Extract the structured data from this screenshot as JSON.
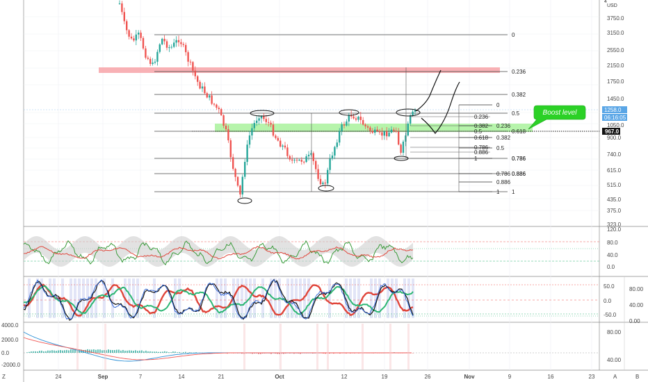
{
  "axis": {
    "currency": "USD",
    "multiplier": "4",
    "last_price": "1258.0",
    "countdown": "06:16:05",
    "crosshair_price": "967.0",
    "price_ticks": [
      "3750.0",
      "3150.0",
      "2550.0",
      "2150.0",
      "1750.0",
      "1450.0",
      "1258.0",
      "1050.0",
      "900.0",
      "740.0",
      "615.0",
      "515.0",
      "435.0",
      "375.0",
      "323.0"
    ],
    "pane1_ticks": [
      "120.0",
      "80.0",
      "40.0",
      "0.0"
    ],
    "pane2_ticks": [
      "50.0",
      "0.0",
      "-50.0"
    ],
    "pane2_right_ticks": [
      "80.00",
      "40.00",
      "0.00"
    ],
    "pane3_ticks": [
      "4000.0",
      "2000.0",
      "0.0",
      "-2000.0"
    ],
    "pane3_right_ticks": [
      "80.00",
      "40.00"
    ],
    "time_ticks": [
      "24",
      "Sep",
      "7",
      "14",
      "21",
      "Oct",
      "12",
      "19",
      "26",
      "Nov",
      "9",
      "16",
      "23"
    ]
  },
  "fib_levels": {
    "large": [
      "0",
      "0.236",
      "0.382",
      "0.5",
      "0.618",
      "0.786",
      "0.886",
      "1"
    ],
    "mid": [
      "0",
      "0.236",
      "0.382",
      "0.5",
      "0.618",
      "0.786",
      "0.886",
      "1"
    ],
    "small": [
      "0",
      "0.236",
      "0.382",
      "0.5",
      "0.618",
      "0.786",
      "0.886",
      "1"
    ]
  },
  "annotations": {
    "boost_level": "Boost level"
  },
  "controls": {
    "left": "Z",
    "auto": "A",
    "settings": "B"
  },
  "colors": {
    "up": "#26a69a",
    "down": "#ef5350",
    "resistance_zone": "#f7a3a8",
    "support_zone": "#9ef08f",
    "grid": "#eef0f3"
  }
}
